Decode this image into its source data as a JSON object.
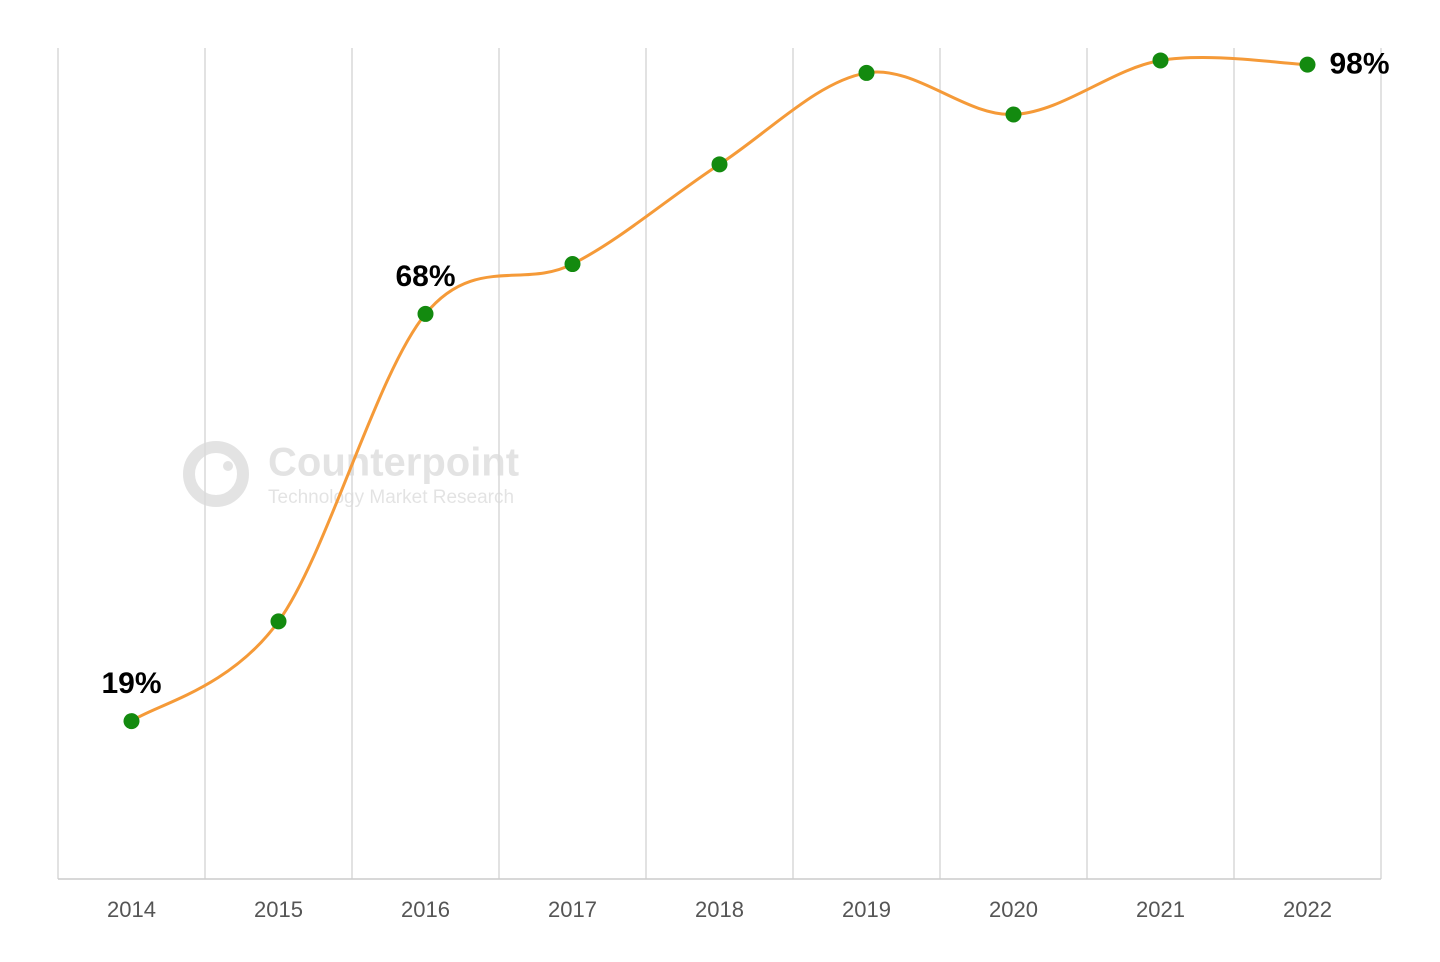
{
  "chart_data": {
    "type": "line",
    "categories": [
      "2014",
      "2015",
      "2016",
      "2017",
      "2018",
      "2019",
      "2020",
      "2021",
      "2022"
    ],
    "series": [
      {
        "color": "#f59a38",
        "marker_color": "#138a0f",
        "values": [
          19,
          31,
          68,
          74,
          86,
          97,
          92,
          98.5,
          98
        ],
        "value_labels": [
          "19%",
          null,
          "68%",
          null,
          null,
          null,
          null,
          null,
          "98%"
        ]
      }
    ],
    "ylim": [
      0,
      100
    ],
    "grid": true,
    "smooth": true,
    "watermark": {
      "title": "Counterpoint",
      "subtitle": "Technology Market Research"
    }
  }
}
